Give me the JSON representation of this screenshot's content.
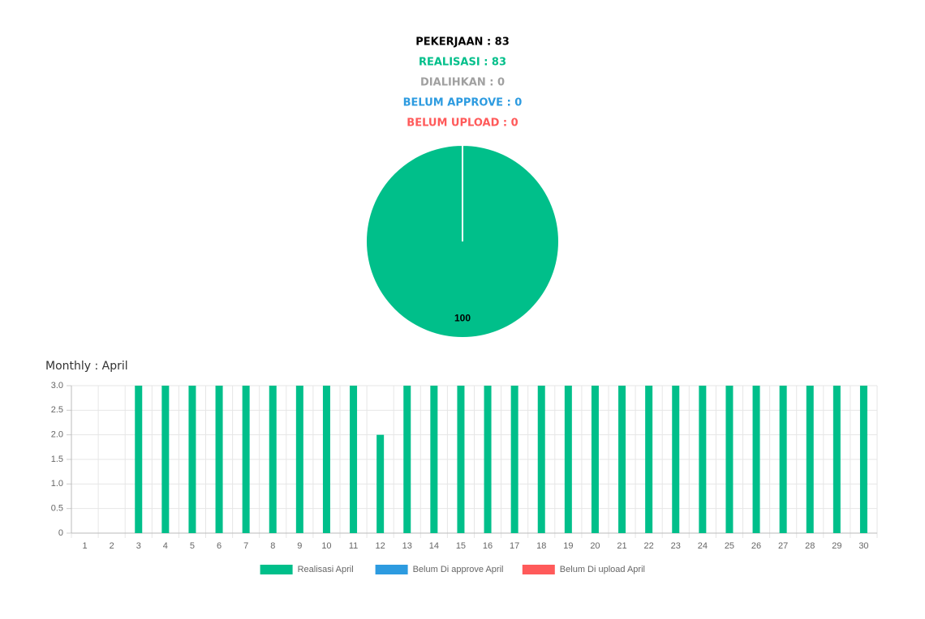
{
  "summary": [
    {
      "text": "PEKERJAAN : 83",
      "color": "#000000"
    },
    {
      "text": "REALISASI : 83",
      "color": "#00bf8a"
    },
    {
      "text": "DIALIHKAN : 0",
      "color": "#a0a0a0"
    },
    {
      "text": "BELUM APPROVE : 0",
      "color": "#2d9be0"
    },
    {
      "text": "BELUM UPLOAD : 0",
      "color": "#ff5a5a"
    }
  ],
  "chart_data": [
    {
      "type": "pie",
      "values": [
        100
      ],
      "colors": [
        "#00bf8a"
      ]
    },
    {
      "type": "bar",
      "title": "Monthly : April",
      "categories": [
        "1",
        "2",
        "3",
        "4",
        "5",
        "6",
        "7",
        "8",
        "9",
        "10",
        "11",
        "12",
        "13",
        "14",
        "15",
        "16",
        "17",
        "18",
        "19",
        "20",
        "21",
        "22",
        "23",
        "24",
        "25",
        "26",
        "27",
        "28",
        "29",
        "30"
      ],
      "series": [
        {
          "name": "Realisasi April",
          "color": "#00bf8a",
          "values": [
            0,
            0,
            3,
            3,
            3,
            3,
            3,
            3,
            3,
            3,
            3,
            2,
            3,
            3,
            3,
            3,
            3,
            3,
            3,
            3,
            3,
            3,
            3,
            3,
            3,
            3,
            3,
            3,
            3,
            3
          ]
        },
        {
          "name": "Belum Di approve April",
          "color": "#2d9be0",
          "values": [
            0,
            0,
            0,
            0,
            0,
            0,
            0,
            0,
            0,
            0,
            0,
            0,
            0,
            0,
            0,
            0,
            0,
            0,
            0,
            0,
            0,
            0,
            0,
            0,
            0,
            0,
            0,
            0,
            0,
            0
          ]
        },
        {
          "name": "Belum Di upload April",
          "color": "#ff5a5a",
          "values": [
            0,
            0,
            0,
            0,
            0,
            0,
            0,
            0,
            0,
            0,
            0,
            0,
            0,
            0,
            0,
            0,
            0,
            0,
            0,
            0,
            0,
            0,
            0,
            0,
            0,
            0,
            0,
            0,
            0,
            0
          ]
        }
      ],
      "ylim": [
        0,
        3
      ],
      "yticks": [
        0,
        0.5,
        {
          "value": 1,
          "label": "1.0"
        },
        1.5,
        {
          "value": 2,
          "label": "2.0"
        },
        2.5,
        {
          "value": 3,
          "label": "3.0"
        }
      ],
      "grid": true,
      "legend": "bottom"
    }
  ]
}
